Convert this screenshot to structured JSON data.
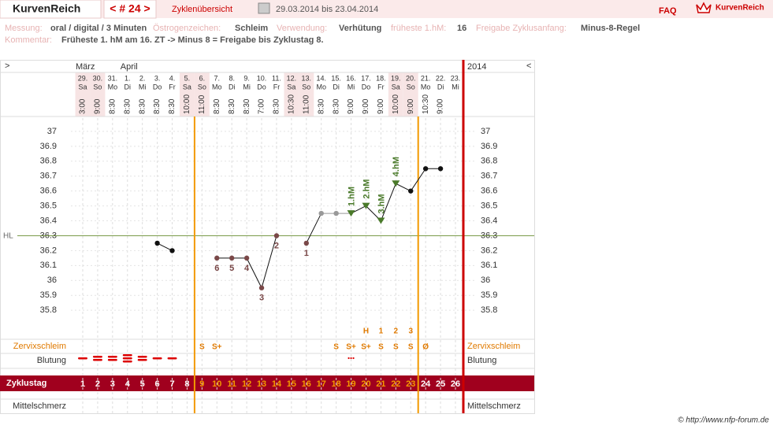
{
  "header": {
    "logo": "KurvenReich",
    "cycle_nav": "< # 24 >",
    "overview": "Zyklenübersicht",
    "range": "29.03.2014 bis 23.04.2014",
    "faq": "FAQ",
    "brand": "KurvenReich"
  },
  "info": {
    "measurement_label": "Messung:",
    "measurement": "oral / digital / 3 Minuten",
    "estrogen_label": "Östrogenzeichen:",
    "estrogen": "Schleim",
    "usage_label": "Verwendung:",
    "usage": "Verhütung",
    "earliest_label": "früheste 1.hM:",
    "earliest": "16",
    "release_label": "Freigabe Zyklusanfang:",
    "release": "Minus-8-Regel",
    "comment_label": "Kommentar:",
    "comment": "Früheste 1. hM am 16. ZT -> Minus 8 = Freigabe bis Zyklustag 8."
  },
  "chart_data": {
    "type": "line",
    "nav_prev": ">",
    "nav_next": "<",
    "year": "2014",
    "months": [
      "März",
      null,
      null,
      "April",
      null,
      null,
      null,
      null,
      null,
      null,
      null,
      null,
      null,
      null,
      null,
      null,
      null,
      null,
      null,
      null,
      null,
      null,
      null,
      null,
      null,
      null
    ],
    "dates": [
      "29.",
      "30.",
      "31.",
      "1.",
      "2.",
      "3.",
      "4.",
      "5.",
      "6.",
      "7.",
      "8.",
      "9.",
      "10.",
      "11.",
      "12.",
      "13.",
      "14.",
      "15.",
      "16.",
      "17.",
      "18.",
      "19.",
      "20.",
      "21.",
      "22.",
      "23."
    ],
    "weekdays": [
      "Sa",
      "So",
      "Mo",
      "Di",
      "Mi",
      "Do",
      "Fr",
      "Sa",
      "So",
      "Mo",
      "Di",
      "Mi",
      "Do",
      "Fr",
      "Sa",
      "So",
      "Mo",
      "Di",
      "Mi",
      "Do",
      "Fr",
      "Sa",
      "So",
      "Mo",
      "Di",
      "Mi"
    ],
    "times": [
      "3:00",
      "9:00",
      "8:30",
      "8:30",
      "8:30",
      "8:30",
      "8:30",
      "10:00",
      "11:00",
      "8:30",
      "8:30",
      "8:30",
      "7:00",
      "8:30",
      "10:30",
      "11:00",
      "8:30",
      "8:30",
      "9:00",
      "9:00",
      "9:00",
      "10:00",
      "9:00",
      "10:30",
      "9:00",
      null
    ],
    "values": [
      null,
      null,
      null,
      null,
      null,
      36.25,
      36.2,
      null,
      null,
      36.15,
      36.15,
      36.15,
      35.95,
      36.3,
      null,
      36.25,
      36.45,
      36.45,
      36.45,
      36.5,
      36.4,
      36.65,
      36.6,
      36.75,
      36.75,
      null
    ],
    "point_colors": [
      null,
      null,
      null,
      null,
      null,
      "#111",
      "#111",
      null,
      null,
      "#7a4848",
      "#7a4848",
      "#7a4848",
      "#7a4848",
      "#7a4848",
      null,
      "#7a4848",
      "#999",
      "#999",
      "#4a7a2a",
      "#4a7a2a",
      "#4a7a2a",
      "#4a7a2a",
      "#111",
      "#111",
      "#111",
      null
    ],
    "point_labels": [
      null,
      null,
      null,
      null,
      null,
      null,
      null,
      null,
      null,
      "6",
      "5",
      "4",
      "3",
      "2",
      null,
      "1",
      null,
      null,
      null,
      null,
      null,
      null,
      null,
      null,
      null,
      null
    ],
    "hm_labels": [
      null,
      null,
      null,
      null,
      null,
      null,
      null,
      null,
      null,
      null,
      null,
      null,
      null,
      null,
      null,
      null,
      null,
      null,
      "1.hM",
      "2.hM",
      "3.hM",
      "4.hM",
      null,
      null,
      null,
      null
    ],
    "ylim": [
      35.6,
      37.1
    ],
    "yticks": [
      35.8,
      35.9,
      36,
      36.1,
      36.2,
      36.3,
      36.4,
      36.5,
      36.6,
      36.7,
      36.8,
      36.9,
      37
    ],
    "hl": 36.3,
    "hl_label": "HL",
    "cervix_label": "Zervixschleim",
    "cervix": [
      null,
      null,
      null,
      null,
      null,
      null,
      null,
      null,
      "S",
      "S+",
      null,
      null,
      null,
      null,
      null,
      null,
      null,
      "S",
      "S+",
      "S+",
      "S",
      "S",
      "S",
      "Ø",
      null,
      null
    ],
    "cervix_marks": [
      null,
      null,
      null,
      null,
      null,
      null,
      null,
      null,
      null,
      null,
      null,
      null,
      null,
      null,
      null,
      null,
      null,
      null,
      null,
      "H",
      "1",
      "2",
      "3",
      null,
      null,
      null
    ],
    "bleeding_label": "Blutung",
    "bleeding": [
      1,
      2,
      2,
      3,
      2,
      1,
      1,
      null,
      null,
      null,
      null,
      null,
      null,
      null,
      null,
      null,
      null,
      null,
      0.5,
      null,
      null,
      null,
      null,
      null,
      null,
      null
    ],
    "cycle_label": "Zyklustag",
    "cycle_days": [
      1,
      2,
      3,
      4,
      5,
      6,
      7,
      8,
      9,
      10,
      11,
      12,
      13,
      14,
      15,
      16,
      17,
      18,
      19,
      20,
      21,
      22,
      23,
      24,
      25,
      26
    ],
    "phase_lines": [
      8,
      23
    ],
    "pain_label": "Mittelschmerz"
  },
  "copyright": "© http://www.nfp-forum.de"
}
